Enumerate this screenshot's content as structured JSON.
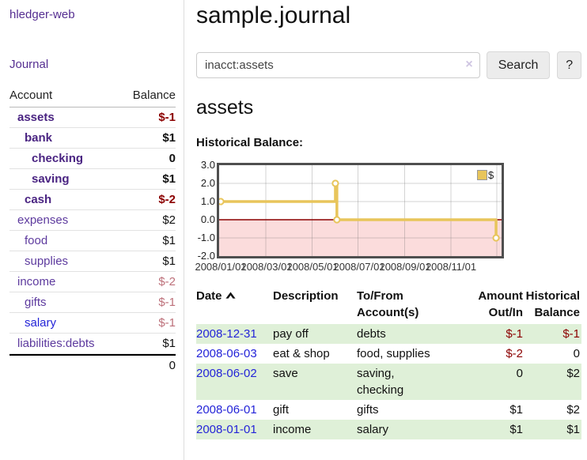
{
  "app": {
    "brand": "hledger-web",
    "nav": {
      "journal": "Journal"
    }
  },
  "colors": {
    "link_purple": "#552e91",
    "link_blue": "#2424d8",
    "negative_strong": "#8b0000",
    "negative_muted": "#bd707a",
    "row_green": "#dff0d8",
    "chart_line_gold": "#e8c55b",
    "chart_negative_fill": "#fbdcdc",
    "chart_zero_line": "#8b0000",
    "chart_border": "#4f4f4f"
  },
  "sidebar": {
    "account_header": "Account",
    "balance_header": "Balance",
    "accounts": [
      {
        "name": "assets",
        "depth": "1",
        "style": "purple-bold",
        "balance": "$-1",
        "variant": "neg-strong"
      },
      {
        "name": "bank",
        "depth": "2",
        "style": "purple-bold",
        "balance": "$1",
        "variant": "pos-bold"
      },
      {
        "name": "checking",
        "depth": "3",
        "style": "purple-bold",
        "balance": "0",
        "variant": "pos-bold"
      },
      {
        "name": "saving",
        "depth": "3",
        "style": "purple-bold",
        "balance": "$1",
        "variant": "pos-bold"
      },
      {
        "name": "cash",
        "depth": "2",
        "style": "purple-bold",
        "balance": "$-2",
        "variant": "neg-strong"
      },
      {
        "name": "expenses",
        "depth": "1",
        "style": "purple",
        "balance": "$2",
        "variant": "pos"
      },
      {
        "name": "food",
        "depth": "2",
        "style": "purple",
        "balance": "$1",
        "variant": "pos"
      },
      {
        "name": "supplies",
        "depth": "2",
        "style": "purple",
        "balance": "$1",
        "variant": "pos"
      },
      {
        "name": "income",
        "depth": "1",
        "style": "purple",
        "balance": "$-2",
        "variant": "neg-muted"
      },
      {
        "name": "gifts",
        "depth": "2",
        "style": "purple",
        "balance": "$-1",
        "variant": "neg-muted"
      },
      {
        "name": "salary",
        "depth": "2",
        "style": "blue",
        "balance": "$-1",
        "variant": "neg-muted"
      },
      {
        "name": "liabilities:debts",
        "depth": "1",
        "style": "purple",
        "balance": "$1",
        "variant": "pos"
      }
    ],
    "total": "0"
  },
  "main": {
    "title": "sample.journal",
    "search": {
      "value": "inacct:assets",
      "clear_icon": "×",
      "search_button": "Search",
      "help_button": "?"
    },
    "account_heading": "assets",
    "chart_label": "Historical Balance:"
  },
  "chart_data": {
    "type": "line",
    "title": "Historical Balance:",
    "step": true,
    "series": [
      {
        "name": "$",
        "points": [
          [
            "2008-01-01",
            1
          ],
          [
            "2008-06-01",
            2
          ],
          [
            "2008-06-03",
            0
          ],
          [
            "2008-12-31",
            -1
          ]
        ]
      }
    ],
    "ylim": [
      -2,
      3
    ],
    "yticks": [
      "3.0",
      "2.0",
      "1.0",
      "0.0",
      "-1.0",
      "-2.0"
    ],
    "xticks": [
      "2008/01/01",
      "2008/03/01",
      "2008/05/01",
      "2008/07/01",
      "2008/09/01",
      "2008/11/01"
    ],
    "grid": true,
    "legend_position": "top-right",
    "negative_fill": "#fbdcdc",
    "line_color": "#e8c55b",
    "zero_line_color": "#8b0000"
  },
  "register": {
    "headers": {
      "date": "Date",
      "description": "Description",
      "accounts": "To/From\nAccount(s)",
      "amount": "Amount\nOut/In",
      "balance": "Historical\nBalance"
    },
    "rows": [
      {
        "date": "2008-12-31",
        "description": "pay off",
        "accounts": "debts",
        "amount": "$-1",
        "amount_variant": "neg",
        "balance": "$-1",
        "balance_variant": "neg",
        "shade": "green"
      },
      {
        "date": "2008-06-03",
        "description": "eat & shop",
        "accounts": "food, supplies",
        "amount": "$-2",
        "amount_variant": "neg",
        "balance": "0",
        "balance_variant": "pos",
        "shade": "white"
      },
      {
        "date": "2008-06-02",
        "description": "save",
        "accounts": "saving,\nchecking",
        "amount": "0",
        "amount_variant": "pos",
        "balance": "$2",
        "balance_variant": "pos",
        "shade": "green"
      },
      {
        "date": "2008-06-01",
        "description": "gift",
        "accounts": "gifts",
        "amount": "$1",
        "amount_variant": "pos",
        "balance": "$2",
        "balance_variant": "pos",
        "shade": "white"
      },
      {
        "date": "2008-01-01",
        "description": "income",
        "accounts": "salary",
        "amount": "$1",
        "amount_variant": "pos",
        "balance": "$1",
        "balance_variant": "pos",
        "shade": "green"
      }
    ]
  }
}
